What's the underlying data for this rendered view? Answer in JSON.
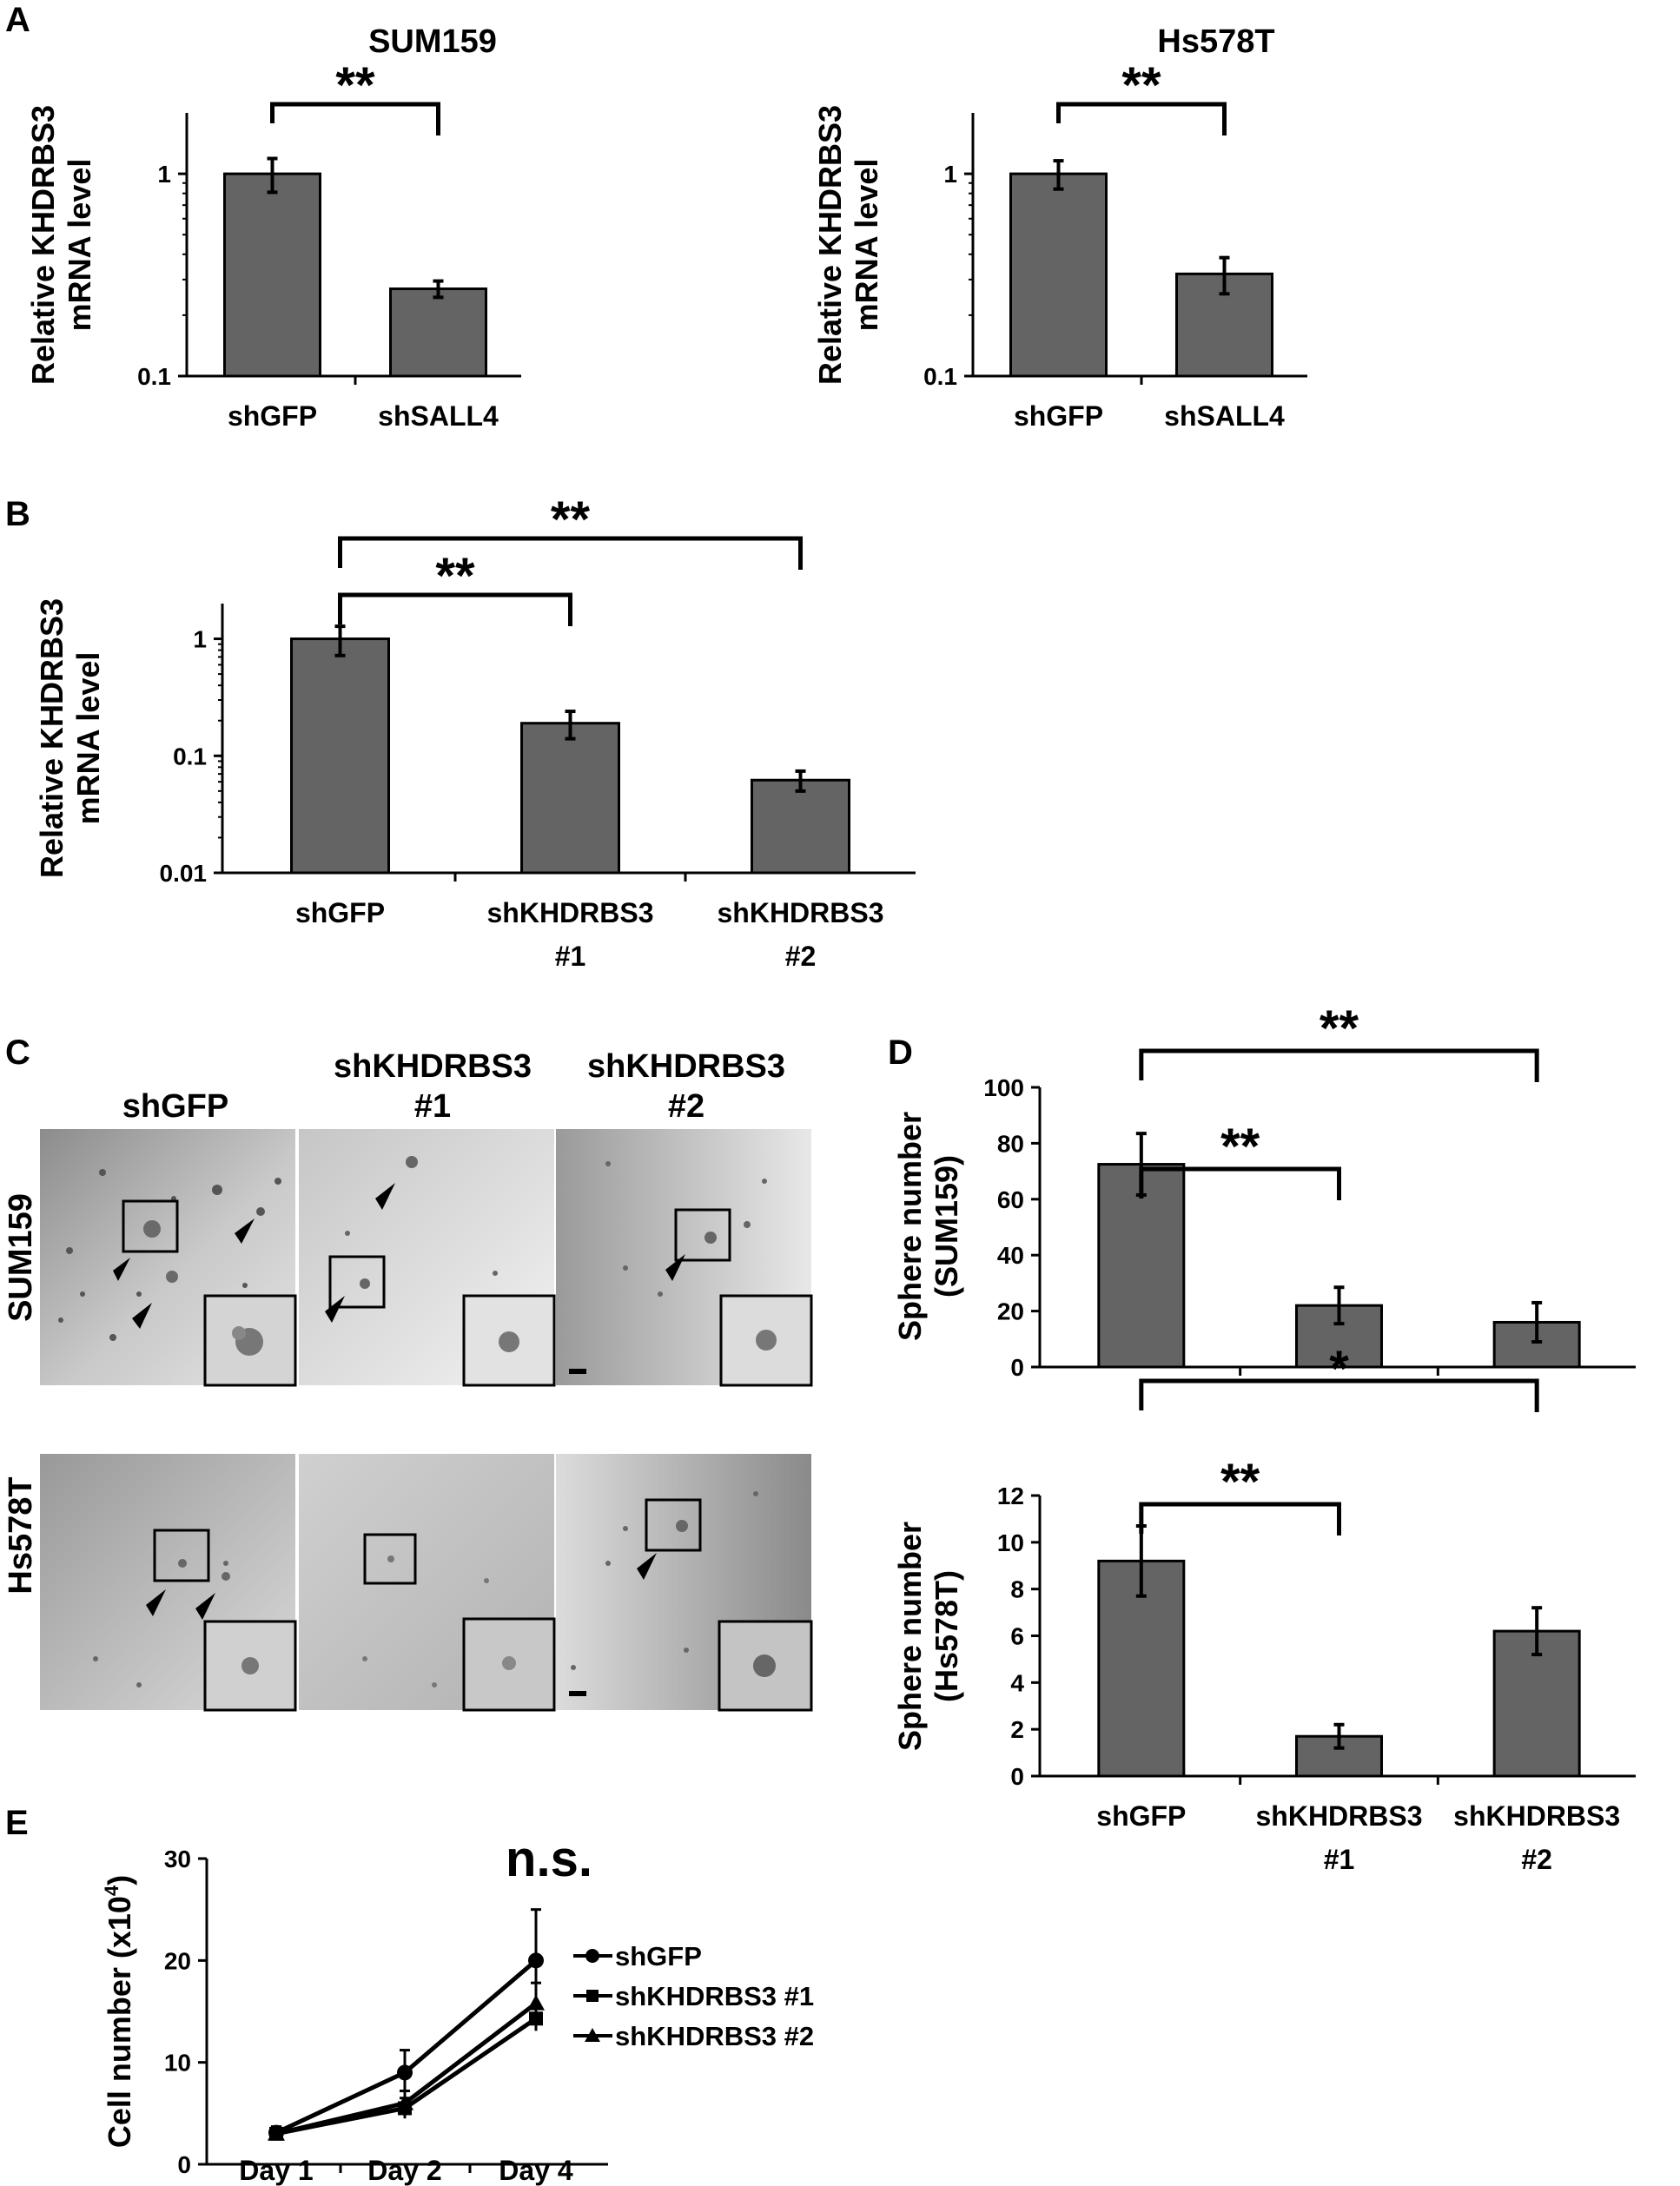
{
  "panels": {
    "A": "A",
    "B": "B",
    "C": "C",
    "D": "D",
    "E": "E"
  },
  "colors": {
    "bar_fill": "#646464",
    "bar_stroke": "#000000",
    "micrograph_bg": "#c8c8c8"
  },
  "chart_data": [
    {
      "id": "A_left",
      "panel": "A",
      "type": "bar",
      "title": "SUM159",
      "ylabel_lines": [
        "Relative KHDRBS3",
        "mRNA level"
      ],
      "yscale": "log",
      "ylim": [
        0.1,
        2
      ],
      "yticks": [
        0.1,
        1
      ],
      "ytick_labels": [
        "0.1",
        "1"
      ],
      "categories": [
        [
          "shGFP"
        ],
        [
          "shSALL4"
        ]
      ],
      "values": [
        1.0,
        0.27
      ],
      "errors": [
        0.19,
        0.025
      ],
      "significance": [
        {
          "from": 0,
          "to": 1,
          "label": "**"
        }
      ],
      "grid": false
    },
    {
      "id": "A_right",
      "panel": "A",
      "type": "bar",
      "title": "Hs578T",
      "ylabel_lines": [
        "Relative KHDRBS3",
        "mRNA level"
      ],
      "yscale": "log",
      "ylim": [
        0.1,
        2
      ],
      "yticks": [
        0.1,
        1
      ],
      "ytick_labels": [
        "0.1",
        "1"
      ],
      "categories": [
        [
          "shGFP"
        ],
        [
          "shSALL4"
        ]
      ],
      "values": [
        1.0,
        0.32
      ],
      "errors": [
        0.16,
        0.065
      ],
      "significance": [
        {
          "from": 0,
          "to": 1,
          "label": "**"
        }
      ],
      "grid": false
    },
    {
      "id": "B",
      "panel": "B",
      "type": "bar",
      "title": "",
      "ylabel_lines": [
        "Relative KHDRBS3",
        "mRNA level"
      ],
      "yscale": "log",
      "ylim": [
        0.01,
        2
      ],
      "yticks": [
        0.01,
        0.1,
        1
      ],
      "ytick_labels": [
        "0.01",
        "0.1",
        "1"
      ],
      "categories": [
        [
          "shGFP"
        ],
        [
          "shKHDRBS3",
          "#1"
        ],
        [
          "shKHDRBS3",
          "#2"
        ]
      ],
      "values": [
        1.0,
        0.19,
        0.062
      ],
      "errors": [
        0.28,
        0.05,
        0.012
      ],
      "significance": [
        {
          "from": 0,
          "to": 1,
          "label": "**"
        },
        {
          "from": 0,
          "to": 2,
          "label": "**"
        }
      ],
      "grid": false
    },
    {
      "id": "D_top",
      "panel": "D",
      "type": "bar",
      "title": "",
      "ylabel_lines": [
        "Sphere number",
        "(SUM159)"
      ],
      "yscale": "linear",
      "ylim": [
        0,
        100
      ],
      "yticks": [
        0,
        20,
        40,
        60,
        80,
        100
      ],
      "ytick_labels": [
        "0",
        "20",
        "40",
        "60",
        "80",
        "100"
      ],
      "categories": [
        [
          "shGFP"
        ],
        [
          "shKHDRBS3",
          "#1"
        ],
        [
          "shKHDRBS3",
          "#2"
        ]
      ],
      "show_category_labels": false,
      "values": [
        72.5,
        22,
        16
      ],
      "errors": [
        11,
        6.5,
        7
      ],
      "significance": [
        {
          "from": 0,
          "to": 1,
          "label": "**"
        },
        {
          "from": 0,
          "to": 2,
          "label": "**"
        }
      ],
      "grid": false
    },
    {
      "id": "D_bottom",
      "panel": "D",
      "type": "bar",
      "title": "",
      "ylabel_lines": [
        "Sphere number",
        "(Hs578T)"
      ],
      "yscale": "linear",
      "ylim": [
        0,
        12
      ],
      "yticks": [
        0,
        2,
        4,
        6,
        8,
        10,
        12
      ],
      "ytick_labels": [
        "0",
        "2",
        "4",
        "6",
        "8",
        "10",
        "12"
      ],
      "categories": [
        [
          "shGFP"
        ],
        [
          "shKHDRBS3",
          "#1"
        ],
        [
          "shKHDRBS3",
          "#2"
        ]
      ],
      "values": [
        9.2,
        1.7,
        6.2
      ],
      "errors": [
        1.5,
        0.5,
        1.0
      ],
      "significance": [
        {
          "from": 0,
          "to": 1,
          "label": "**"
        },
        {
          "from": 0,
          "to": 2,
          "label": "*"
        }
      ],
      "grid": false
    },
    {
      "id": "E",
      "panel": "E",
      "type": "line",
      "title": "",
      "ylabel": "Cell number (x10",
      "ylabel_sup": "4",
      "ylabel_end": ")",
      "ylim": [
        0,
        30
      ],
      "yticks": [
        0,
        10,
        20,
        30
      ],
      "ytick_labels": [
        "0",
        "10",
        "20",
        "30"
      ],
      "categories": [
        "Day 1",
        "Day 2",
        "Day 4"
      ],
      "series": [
        {
          "name": "shGFP",
          "marker": "circle",
          "values": [
            3.1,
            9.0,
            20.0
          ],
          "errors": [
            0.6,
            2.2,
            5.0
          ]
        },
        {
          "name": "shKHDRBS3 #1",
          "marker": "square",
          "values": [
            3.0,
            5.5,
            14.3
          ],
          "errors": [
            0.5,
            1.0,
            1.2
          ]
        },
        {
          "name": "shKHDRBS3 #2",
          "marker": "triangle",
          "values": [
            3.0,
            6.0,
            15.8
          ],
          "errors": [
            0.5,
            1.2,
            2.0
          ]
        }
      ],
      "annotation": "n.s.",
      "legend_position": "right",
      "grid": false
    }
  ],
  "micrographs": {
    "columns": [
      [
        "shGFP"
      ],
      [
        "shKHDRBS3",
        "#1"
      ],
      [
        "shKHDRBS3",
        "#2"
      ]
    ],
    "rows": [
      "SUM159",
      "Hs578T"
    ]
  }
}
